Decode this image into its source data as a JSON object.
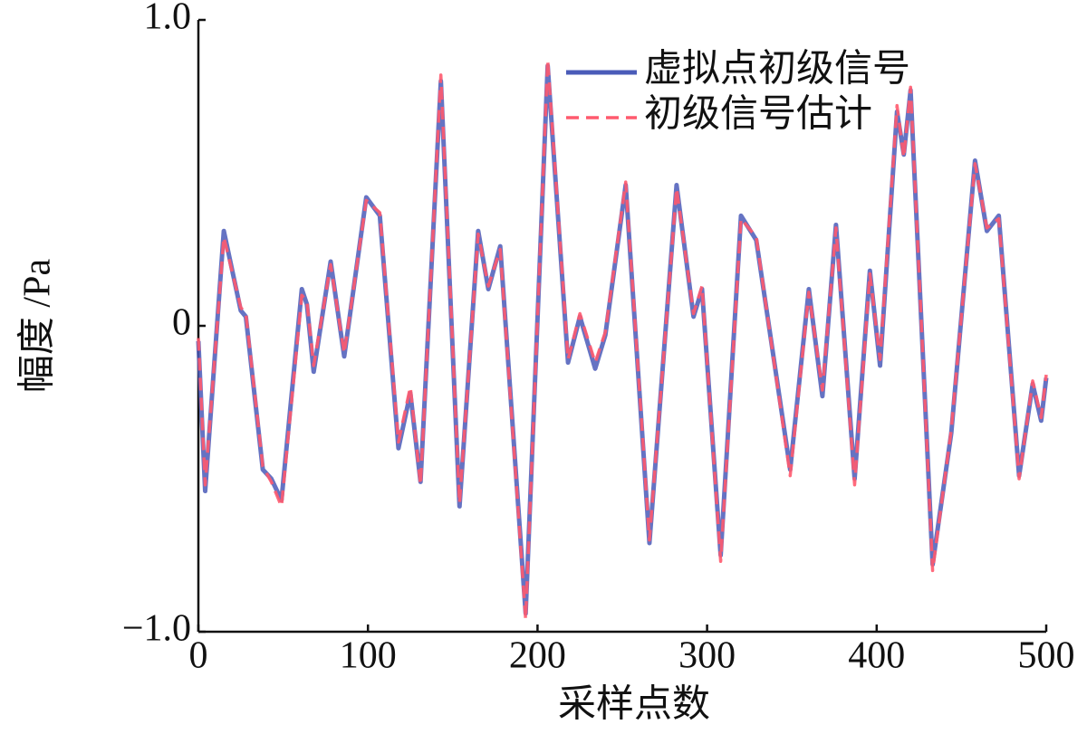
{
  "chart_data": {
    "type": "line",
    "xlabel": "采样点数",
    "ylabel": "幅度 /Pa",
    "x": [
      0,
      4,
      15,
      25,
      28,
      38,
      43,
      49,
      61,
      64,
      68,
      78,
      86,
      99,
      107,
      118,
      125,
      131,
      143,
      154,
      165,
      171,
      178,
      193,
      206,
      218,
      225,
      234,
      240,
      252,
      266,
      282,
      292,
      297,
      308,
      320,
      329,
      349,
      360,
      368,
      376,
      387,
      396,
      402,
      412,
      416,
      420,
      433,
      444,
      458,
      465,
      472,
      484,
      492,
      497,
      500
    ],
    "series": [
      {
        "name": "虚拟点初级信号",
        "color": "#4a5bb8",
        "dash": false,
        "values": [
          -0.05,
          -0.54,
          0.31,
          0.05,
          0.03,
          -0.47,
          -0.5,
          -0.57,
          0.12,
          0.07,
          -0.15,
          0.21,
          -0.1,
          0.42,
          0.36,
          -0.4,
          -0.22,
          -0.51,
          0.8,
          -0.59,
          0.31,
          0.12,
          0.26,
          -0.94,
          0.85,
          -0.12,
          0.03,
          -0.14,
          -0.03,
          0.46,
          -0.71,
          0.46,
          0.03,
          0.12,
          -0.75,
          0.36,
          0.28,
          -0.47,
          0.12,
          -0.23,
          0.33,
          -0.5,
          0.18,
          -0.13,
          0.7,
          0.56,
          0.77,
          -0.78,
          -0.35,
          0.54,
          0.31,
          0.36,
          -0.49,
          -0.19,
          -0.31,
          -0.17
        ]
      },
      {
        "name": "初级信号估计",
        "color": "#ff5a6e",
        "dash": true,
        "values": [
          -0.04,
          -0.52,
          0.29,
          0.06,
          0.04,
          -0.46,
          -0.51,
          -0.59,
          0.1,
          0.08,
          -0.13,
          0.2,
          -0.09,
          0.41,
          0.37,
          -0.38,
          -0.2,
          -0.52,
          0.82,
          -0.58,
          0.3,
          0.13,
          0.25,
          -0.96,
          0.87,
          -0.11,
          0.04,
          -0.12,
          -0.02,
          0.47,
          -0.7,
          0.45,
          0.04,
          0.13,
          -0.77,
          0.35,
          0.29,
          -0.49,
          0.11,
          -0.21,
          0.32,
          -0.52,
          0.17,
          -0.11,
          0.72,
          0.55,
          0.78,
          -0.8,
          -0.34,
          0.53,
          0.32,
          0.35,
          -0.5,
          -0.18,
          -0.3,
          -0.16
        ]
      }
    ],
    "xlim": [
      0,
      500
    ],
    "xticks": [
      0,
      100,
      200,
      300,
      400,
      500
    ],
    "ylim": [
      -1,
      1
    ],
    "yticks": [
      {
        "value": -1,
        "label": "−1.0"
      },
      0,
      {
        "value": 1,
        "label": "1.0"
      }
    ],
    "legend": "upper right",
    "grid": false
  }
}
